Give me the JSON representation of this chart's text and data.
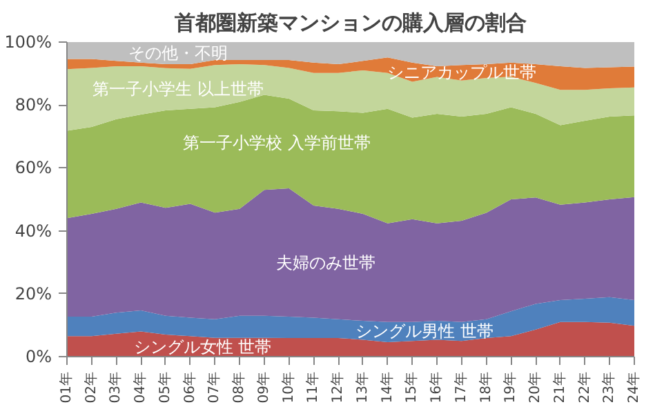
{
  "chart_data": {
    "type": "area",
    "title": "首都圏新築マンションの購入層の割合",
    "stacked": true,
    "legend": false,
    "grid": false,
    "categories": [
      "01年",
      "02年",
      "03年",
      "04年",
      "05年",
      "06年",
      "07年",
      "08年",
      "09年",
      "10年",
      "11年",
      "12年",
      "13年",
      "14年",
      "15年",
      "16年",
      "17年",
      "18年",
      "19年",
      "20年",
      "21年",
      "22年",
      "23年",
      "24年"
    ],
    "ylim": [
      0,
      100
    ],
    "yticks": [
      {
        "value": 0,
        "label": "0%"
      },
      {
        "value": 20,
        "label": "20%"
      },
      {
        "value": 40,
        "label": "40%"
      },
      {
        "value": 60,
        "label": "60%"
      },
      {
        "value": 80,
        "label": "80%"
      },
      {
        "value": 100,
        "label": "100%"
      }
    ],
    "series": [
      {
        "name": "シングル女性 世帯",
        "color": "#c0504d",
        "values": [
          6.5,
          6.5,
          7.3,
          8,
          7,
          6.5,
          6,
          6,
          6,
          5.9,
          5.9,
          5.9,
          5.4,
          4.6,
          5,
          5.4,
          5,
          5.9,
          6.5,
          8.6,
          11,
          11,
          10.8,
          9.8
        ]
      },
      {
        "name": "シングル男性 世帯",
        "color": "#4f81bd",
        "values": [
          6.2,
          6.2,
          6.7,
          6.7,
          6,
          5.9,
          5.9,
          7,
          7,
          6.8,
          6.5,
          6,
          6,
          6.4,
          6,
          6,
          6,
          6,
          7.9,
          8.2,
          7,
          7.4,
          8.1,
          8.2
        ]
      },
      {
        "name": "夫婦のみ世帯",
        "color": "#8064a2",
        "values": [
          31.3,
          32.7,
          33,
          34.3,
          34.3,
          36.2,
          33.9,
          34,
          40,
          40.8,
          35.6,
          35.1,
          34,
          31.4,
          32.7,
          31,
          32.2,
          33.8,
          35.6,
          33.8,
          30.3,
          30.6,
          31.1,
          32.7
        ]
      },
      {
        "name": "第一子小学校 入学前世帯",
        "color": "#9bbb59",
        "values": [
          27.8,
          27.6,
          28.5,
          28,
          31,
          30.2,
          33.5,
          34,
          30.2,
          28.5,
          30.3,
          31,
          32.1,
          36.4,
          32.3,
          34.8,
          33.1,
          31.5,
          29.3,
          26.6,
          25.3,
          26,
          26.3,
          26
        ]
      },
      {
        "name": "第一子小学生 以上世帯",
        "color": "#c3d69b",
        "values": [
          19.6,
          18.8,
          16.8,
          15.3,
          13.4,
          12.7,
          13.4,
          12,
          9.5,
          9.8,
          11.9,
          12.2,
          13.5,
          11.4,
          11.4,
          11.7,
          11.5,
          11.4,
          9.7,
          9.8,
          11.2,
          9.8,
          9,
          8.9
        ]
      },
      {
        "name": "シニアカップル世帯",
        "color": "#e07b39",
        "values": [
          3.2,
          2.8,
          1.7,
          1.2,
          1.3,
          1.5,
          1.6,
          1.3,
          1.6,
          2.5,
          3.3,
          2.8,
          3,
          4.9,
          6.1,
          3.4,
          4.9,
          4.4,
          4.5,
          6,
          7.5,
          7,
          6.7,
          6.6
        ]
      },
      {
        "name": "その他・不明",
        "color": "#bfbfbf",
        "values": [
          5.4,
          5.4,
          6,
          6.5,
          7,
          7,
          5.7,
          5.7,
          5.7,
          5.7,
          6.5,
          7,
          6,
          4.9,
          6.5,
          7.7,
          7.3,
          7,
          6.5,
          7,
          7.7,
          8.2,
          8,
          7.8
        ]
      }
    ]
  }
}
